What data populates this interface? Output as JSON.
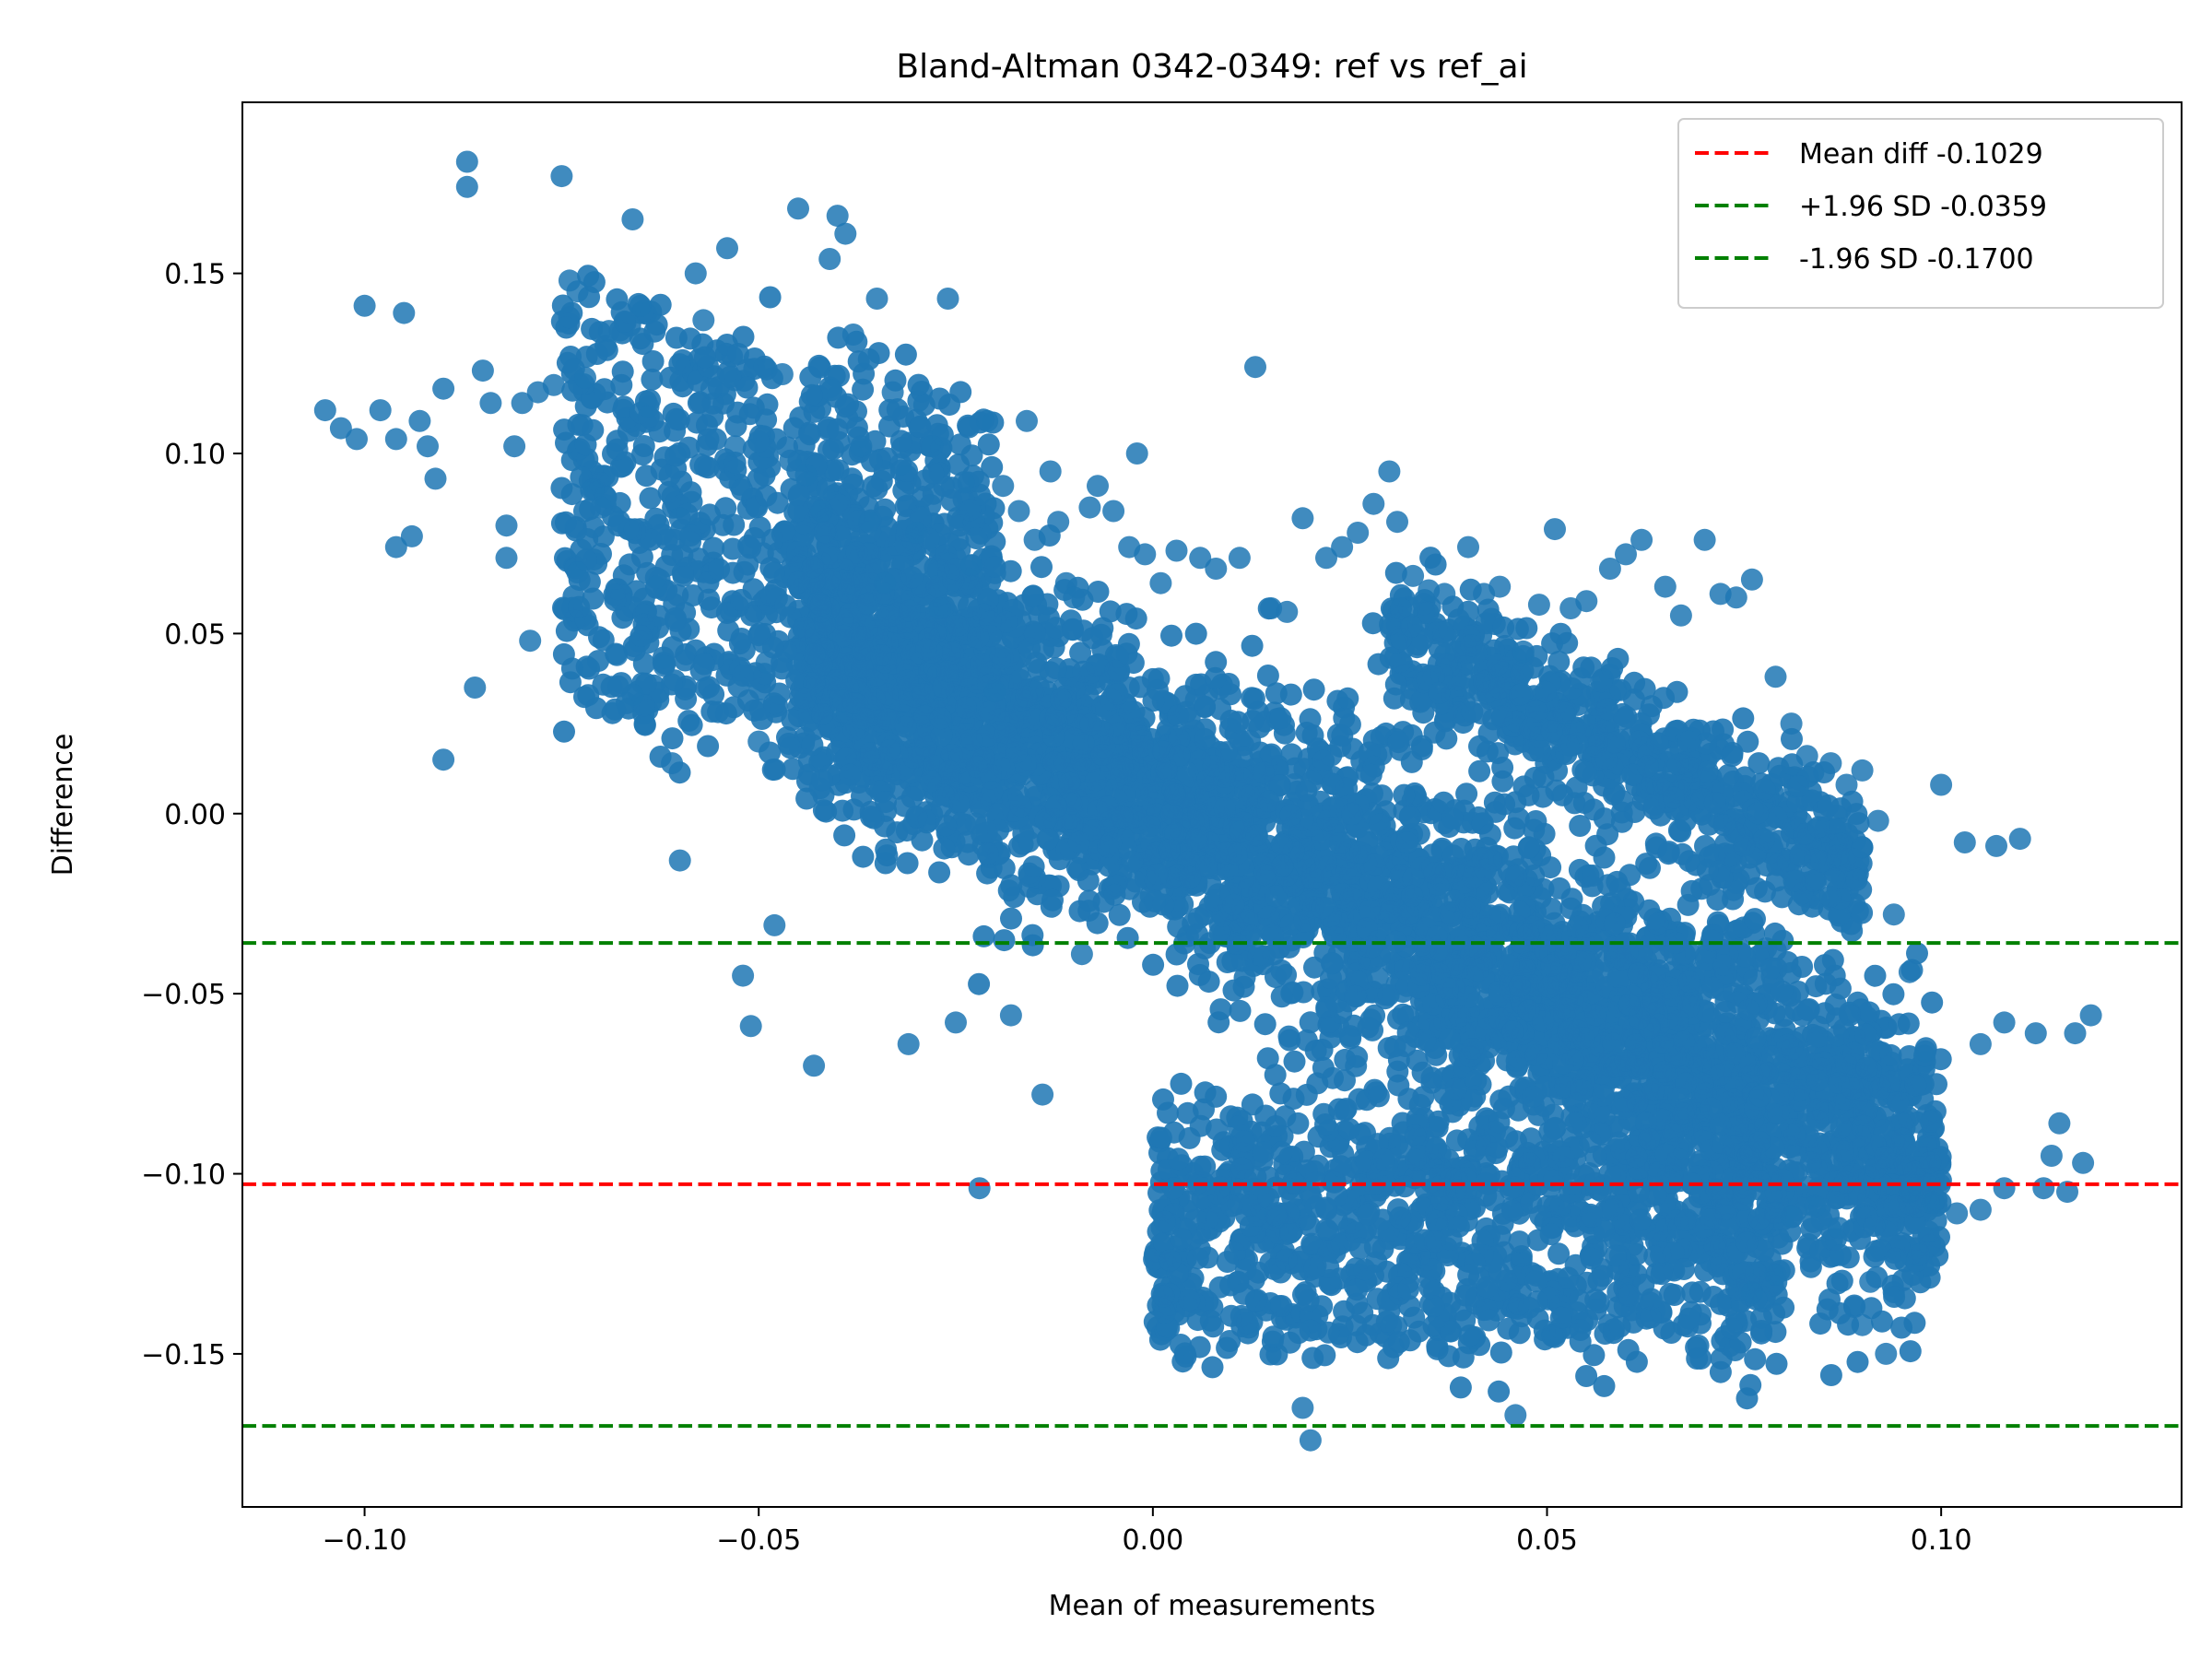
{
  "chart_data": {
    "type": "scatter",
    "title": "Bland-Altman 0342-0349: ref vs ref_ai",
    "xlabel": "Mean of measurements",
    "ylabel": "Difference",
    "xlim": [
      -0.1155,
      0.1305
    ],
    "ylim": [
      -0.1925,
      0.1975
    ],
    "x_ticks": [
      -0.1,
      -0.05,
      0.0,
      0.05,
      0.1
    ],
    "x_tick_labels": [
      "−0.10",
      "−0.05",
      "0.00",
      "0.05",
      "0.10"
    ],
    "y_ticks": [
      -0.15,
      -0.1,
      -0.05,
      0.0,
      0.05,
      0.1,
      0.15
    ],
    "y_tick_labels": [
      "−0.15",
      "−0.10",
      "−0.05",
      "0.00",
      "0.05",
      "0.10",
      "0.15"
    ],
    "grid": false,
    "legend_position": "top-right",
    "point_color": "#1f77b4",
    "reference_lines": [
      {
        "label": "Mean diff -0.1029",
        "y": -0.1029,
        "color": "#ff0000",
        "style": "dashed"
      },
      {
        "label": "+1.96 SD -0.0359",
        "y": -0.0359,
        "color": "#008000",
        "style": "dashed"
      },
      {
        "label": "-1.96 SD -0.1700",
        "y": -0.17,
        "color": "#008000",
        "style": "dashed"
      }
    ],
    "points": [
      [
        -0.105,
        0.112
      ],
      [
        -0.103,
        0.107
      ],
      [
        -0.101,
        0.104
      ],
      [
        -0.1,
        0.141
      ],
      [
        -0.098,
        0.112
      ],
      [
        -0.096,
        0.104
      ],
      [
        -0.095,
        0.139
      ],
      [
        -0.093,
        0.109
      ],
      [
        -0.092,
        0.102
      ],
      [
        -0.091,
        0.093
      ],
      [
        -0.09,
        0.118
      ],
      [
        -0.09,
        0.015
      ],
      [
        -0.096,
        0.074
      ],
      [
        -0.094,
        0.077
      ],
      [
        -0.087,
        0.181
      ],
      [
        -0.087,
        0.174
      ],
      [
        -0.086,
        0.035
      ],
      [
        -0.085,
        0.123
      ],
      [
        -0.084,
        0.114
      ],
      [
        -0.082,
        0.08
      ],
      [
        -0.082,
        0.071
      ],
      [
        -0.081,
        0.102
      ],
      [
        -0.08,
        0.114
      ],
      [
        -0.079,
        0.048
      ],
      [
        -0.078,
        0.117
      ],
      [
        -0.076,
        0.119
      ],
      [
        -0.075,
        0.177
      ],
      [
        -0.074,
        0.148
      ],
      [
        -0.073,
        0.145
      ],
      [
        -0.073,
        0.067
      ],
      [
        -0.072,
        0.121
      ],
      [
        -0.071,
        0.09
      ],
      [
        -0.07,
        0.085
      ],
      [
        -0.069,
        0.134
      ],
      [
        -0.068,
        0.044
      ],
      [
        -0.066,
        0.033
      ],
      [
        -0.066,
        0.165
      ],
      [
        -0.065,
        0.141
      ],
      [
        -0.064,
        0.113
      ],
      [
        -0.063,
        0.063
      ],
      [
        -0.062,
        0.041
      ],
      [
        -0.061,
        0.014
      ],
      [
        -0.06,
        0.082
      ],
      [
        -0.06,
        -0.013
      ],
      [
        -0.058,
        0.15
      ],
      [
        -0.057,
        0.137
      ],
      [
        -0.056,
        0.118
      ],
      [
        -0.054,
        0.157
      ],
      [
        -0.053,
        0.102
      ],
      [
        -0.052,
        -0.045
      ],
      [
        -0.051,
        -0.059
      ],
      [
        -0.05,
        0.02
      ],
      [
        -0.049,
        0.042
      ],
      [
        -0.048,
        -0.031
      ],
      [
        -0.047,
        0.122
      ],
      [
        -0.046,
        0.098
      ],
      [
        -0.045,
        0.168
      ],
      [
        -0.044,
        0.094
      ],
      [
        -0.043,
        -0.07
      ],
      [
        -0.042,
        0.084
      ],
      [
        -0.041,
        0.154
      ],
      [
        -0.04,
        0.166
      ],
      [
        -0.039,
        0.161
      ],
      [
        -0.038,
        0.133
      ],
      [
        -0.037,
        0.102
      ],
      [
        -0.036,
        0.081
      ],
      [
        -0.035,
        0.143
      ],
      [
        -0.034,
        0.064
      ],
      [
        -0.033,
        0.117
      ],
      [
        -0.032,
        0.097
      ],
      [
        -0.031,
        -0.064
      ],
      [
        -0.03,
        0.078
      ],
      [
        -0.028,
        0.102
      ],
      [
        -0.027,
        0.057
      ],
      [
        -0.026,
        0.143
      ],
      [
        -0.025,
        -0.058
      ],
      [
        -0.024,
        0.092
      ],
      [
        -0.023,
        0.069
      ],
      [
        -0.022,
        -0.104
      ],
      [
        -0.021,
        0.109
      ],
      [
        -0.02,
        0.034
      ],
      [
        -0.019,
        0.091
      ],
      [
        -0.018,
        -0.056
      ],
      [
        -0.017,
        0.084
      ],
      [
        -0.016,
        0.109
      ],
      [
        -0.015,
        0.076
      ],
      [
        -0.014,
        -0.078
      ],
      [
        -0.013,
        0.095
      ],
      [
        -0.012,
        0.081
      ],
      [
        -0.011,
        0.064
      ],
      [
        -0.01,
        0.06
      ],
      [
        -0.009,
        -0.039
      ],
      [
        -0.008,
        0.085
      ],
      [
        -0.007,
        0.091
      ],
      [
        -0.005,
        0.084
      ],
      [
        -0.003,
        0.074
      ],
      [
        -0.002,
        0.1
      ],
      [
        -0.001,
        0.072
      ],
      [
        0.001,
        0.064
      ],
      [
        0.003,
        0.073
      ],
      [
        0.006,
        0.071
      ],
      [
        0.008,
        0.068
      ],
      [
        0.011,
        0.071
      ],
      [
        0.013,
        0.124
      ],
      [
        0.015,
        0.057
      ],
      [
        0.017,
        0.056
      ],
      [
        0.019,
        0.082
      ],
      [
        0.019,
        -0.165
      ],
      [
        0.02,
        -0.174
      ],
      [
        0.022,
        0.071
      ],
      [
        0.024,
        0.074
      ],
      [
        0.026,
        0.078
      ],
      [
        0.028,
        0.086
      ],
      [
        0.03,
        0.095
      ],
      [
        0.031,
        0.081
      ],
      [
        0.033,
        0.066
      ],
      [
        0.035,
        0.062
      ],
      [
        0.037,
        0.061
      ],
      [
        0.04,
        0.074
      ],
      [
        0.042,
        0.061
      ],
      [
        0.044,
        0.063
      ],
      [
        0.046,
        -0.167
      ],
      [
        0.047,
        0.045
      ],
      [
        0.049,
        0.058
      ],
      [
        0.051,
        0.079
      ],
      [
        0.053,
        0.057
      ],
      [
        0.055,
        0.059
      ],
      [
        0.058,
        0.068
      ],
      [
        0.06,
        0.072
      ],
      [
        0.062,
        0.076
      ],
      [
        0.065,
        0.063
      ],
      [
        0.067,
        0.055
      ],
      [
        0.07,
        0.076
      ],
      [
        0.072,
        0.061
      ],
      [
        0.074,
        0.06
      ],
      [
        0.076,
        0.065
      ],
      [
        0.079,
        0.038
      ],
      [
        0.081,
        0.025
      ],
      [
        0.083,
        0.016
      ],
      [
        0.086,
        0.014
      ],
      [
        0.088,
        0.008
      ],
      [
        0.09,
        0.012
      ],
      [
        0.092,
        -0.002
      ],
      [
        0.094,
        -0.028
      ],
      [
        0.096,
        -0.044
      ],
      [
        0.098,
        -0.066
      ],
      [
        0.1,
        0.008
      ],
      [
        0.103,
        -0.008
      ],
      [
        0.105,
        -0.064
      ],
      [
        0.107,
        -0.009
      ],
      [
        0.108,
        -0.058
      ],
      [
        0.11,
        -0.007
      ],
      [
        0.112,
        -0.061
      ],
      [
        0.113,
        -0.104
      ],
      [
        0.114,
        -0.095
      ],
      [
        0.115,
        -0.086
      ],
      [
        0.116,
        -0.105
      ],
      [
        0.117,
        -0.061
      ],
      [
        0.118,
        -0.097
      ],
      [
        0.119,
        -0.056
      ],
      [
        0.093,
        -0.15
      ],
      [
        0.09,
        -0.142
      ],
      [
        0.087,
        -0.115
      ],
      [
        0.084,
        -0.109
      ],
      [
        0.081,
        -0.112
      ],
      [
        0.096,
        -0.105
      ],
      [
        0.099,
        -0.108
      ],
      [
        0.102,
        -0.111
      ],
      [
        0.105,
        -0.11
      ],
      [
        0.108,
        -0.104
      ],
      [
        0.089,
        -0.137
      ],
      [
        0.091,
        -0.13
      ],
      [
        0.079,
        -0.128
      ],
      [
        0.076,
        -0.133
      ]
    ]
  }
}
